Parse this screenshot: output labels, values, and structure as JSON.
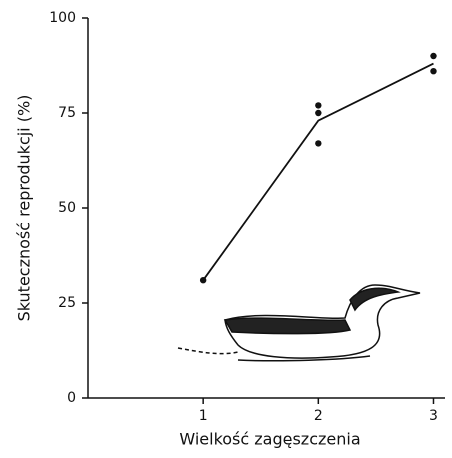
{
  "chart_data": {
    "type": "line",
    "x_label": "Wielkość zagęszczenia",
    "y_label": "Skuteczność reprodukcji (%)",
    "x": [
      1,
      2,
      3
    ],
    "values": [
      31,
      73,
      88
    ],
    "color": "#111111",
    "points": {
      "x": [
        1,
        2,
        2,
        2,
        3,
        3
      ],
      "y": [
        31,
        77,
        75,
        67,
        90,
        86
      ]
    },
    "xlim": [
      0,
      3.1
    ],
    "xticks": [
      1,
      2,
      3
    ],
    "ylim": [
      0,
      100
    ],
    "yticks": [
      0,
      25,
      50,
      75,
      100
    ]
  }
}
